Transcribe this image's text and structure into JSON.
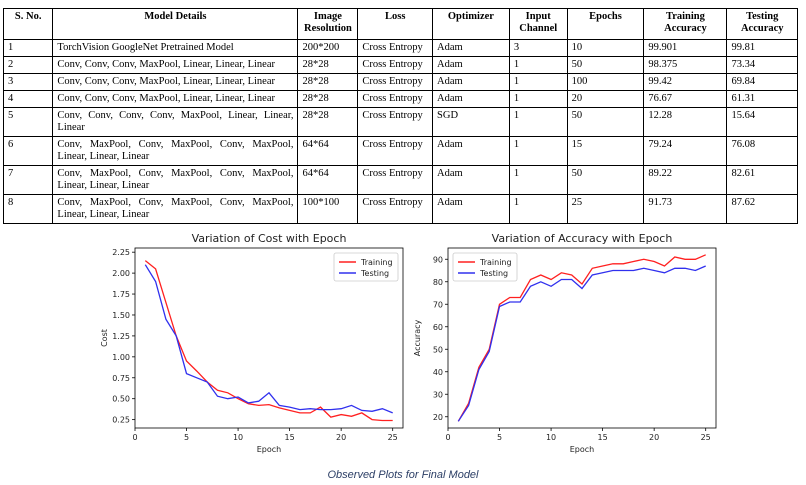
{
  "table": {
    "headers": [
      "S. No.",
      "Model Details",
      "Image Resolution",
      "Loss",
      "Optimizer",
      "Input Channel",
      "Epochs",
      "Training Accuracy",
      "Testing Accuracy"
    ],
    "rows": [
      [
        "1",
        "TorchVision GoogleNet Pretrained Model",
        "200*200",
        "Cross Entropy",
        "Adam",
        "3",
        "10",
        "99.901",
        "99.81"
      ],
      [
        "2",
        "Conv, Conv, Conv, MaxPool, Linear, Linear, Linear",
        "28*28",
        "Cross Entropy",
        "Adam",
        "1",
        "50",
        "98.375",
        "73.34"
      ],
      [
        "3",
        "Conv, Conv, Conv, MaxPool, Linear, Linear, Linear",
        "28*28",
        "Cross Entropy",
        "Adam",
        "1",
        "100",
        "99.42",
        "69.84"
      ],
      [
        "4",
        "Conv, Conv, Conv, MaxPool, Linear, Linear, Linear",
        "28*28",
        "Cross Entropy",
        "Adam",
        "1",
        "20",
        "76.67",
        "61.31"
      ],
      [
        "5",
        "Conv, Conv, Conv, Conv, MaxPool, Linear, Linear, Linear",
        "28*28",
        "Cross Entropy",
        "SGD",
        "1",
        "50",
        "12.28",
        "15.64"
      ],
      [
        "6",
        "Conv, MaxPool, Conv, MaxPool, Conv, MaxPool, Linear, Linear, Linear",
        "64*64",
        "Cross Entropy",
        "Adam",
        "1",
        "15",
        "79.24",
        "76.08"
      ],
      [
        "7",
        "Conv, MaxPool, Conv, MaxPool, Conv, MaxPool, Linear, Linear, Linear",
        "64*64",
        "Cross Entropy",
        "Adam",
        "1",
        "50",
        "89.22",
        "82.61"
      ],
      [
        "8",
        "Conv, MaxPool, Conv, MaxPool, Conv, MaxPool, Linear, Linear, Linear",
        "100*100",
        "Cross Entropy",
        "Adam",
        "1",
        "25",
        "91.73",
        "87.62"
      ]
    ]
  },
  "caption": "Observed Plots for Final Model",
  "chart_data": [
    {
      "type": "line",
      "title": "Variation of Cost with Epoch",
      "xlabel": "Epoch",
      "ylabel": "Cost",
      "xlim": [
        0,
        26
      ],
      "ylim": [
        0.15,
        2.3
      ],
      "xticks": [
        0,
        5,
        10,
        15,
        20,
        25
      ],
      "yticks": [
        0.25,
        0.5,
        0.75,
        1.0,
        1.25,
        1.5,
        1.75,
        2.0,
        2.25
      ],
      "ytick_labels": [
        "0.25",
        "0.50",
        "0.75",
        "1.00",
        "1.25",
        "1.50",
        "1.75",
        "2.00",
        "2.25"
      ],
      "legend_position": "top-right",
      "x": [
        1,
        2,
        3,
        4,
        5,
        6,
        7,
        8,
        9,
        10,
        11,
        12,
        13,
        14,
        15,
        16,
        17,
        18,
        19,
        20,
        21,
        22,
        23,
        24,
        25
      ],
      "series": [
        {
          "name": "Training",
          "color": "#ff2020",
          "values": [
            2.15,
            2.05,
            1.65,
            1.25,
            0.95,
            0.83,
            0.7,
            0.6,
            0.57,
            0.5,
            0.44,
            0.42,
            0.43,
            0.39,
            0.36,
            0.33,
            0.33,
            0.4,
            0.28,
            0.31,
            0.29,
            0.33,
            0.25,
            0.24,
            0.24
          ]
        },
        {
          "name": "Testing",
          "color": "#3030ee",
          "values": [
            2.1,
            1.9,
            1.45,
            1.25,
            0.8,
            0.75,
            0.7,
            0.53,
            0.5,
            0.52,
            0.45,
            0.47,
            0.57,
            0.42,
            0.4,
            0.37,
            0.38,
            0.37,
            0.37,
            0.38,
            0.42,
            0.36,
            0.35,
            0.38,
            0.33
          ]
        }
      ]
    },
    {
      "type": "line",
      "title": "Variation of Accuracy with Epoch",
      "xlabel": "Epoch",
      "ylabel": "Accuracy",
      "xlim": [
        0,
        26
      ],
      "ylim": [
        15,
        95
      ],
      "xticks": [
        0,
        5,
        10,
        15,
        20,
        25
      ],
      "yticks": [
        20,
        30,
        40,
        50,
        60,
        70,
        80,
        90
      ],
      "ytick_labels": [
        "20",
        "30",
        "40",
        "50",
        "60",
        "70",
        "80",
        "90"
      ],
      "legend_position": "top-left",
      "x": [
        1,
        2,
        3,
        4,
        5,
        6,
        7,
        8,
        9,
        10,
        11,
        12,
        13,
        14,
        15,
        16,
        17,
        18,
        19,
        20,
        21,
        22,
        23,
        24,
        25
      ],
      "series": [
        {
          "name": "Training",
          "color": "#ff2020",
          "values": [
            18,
            26,
            42,
            50,
            70,
            73,
            73,
            81,
            83,
            81,
            84,
            83,
            79,
            86,
            87,
            88,
            88,
            89,
            90,
            89,
            87,
            91,
            90,
            90,
            92
          ]
        },
        {
          "name": "Testing",
          "color": "#3030ee",
          "values": [
            18,
            25,
            41,
            49,
            69,
            71,
            71,
            78,
            80,
            78,
            81,
            81,
            77,
            83,
            84,
            85,
            85,
            85,
            86,
            85,
            84,
            86,
            86,
            85,
            87
          ]
        }
      ]
    }
  ]
}
